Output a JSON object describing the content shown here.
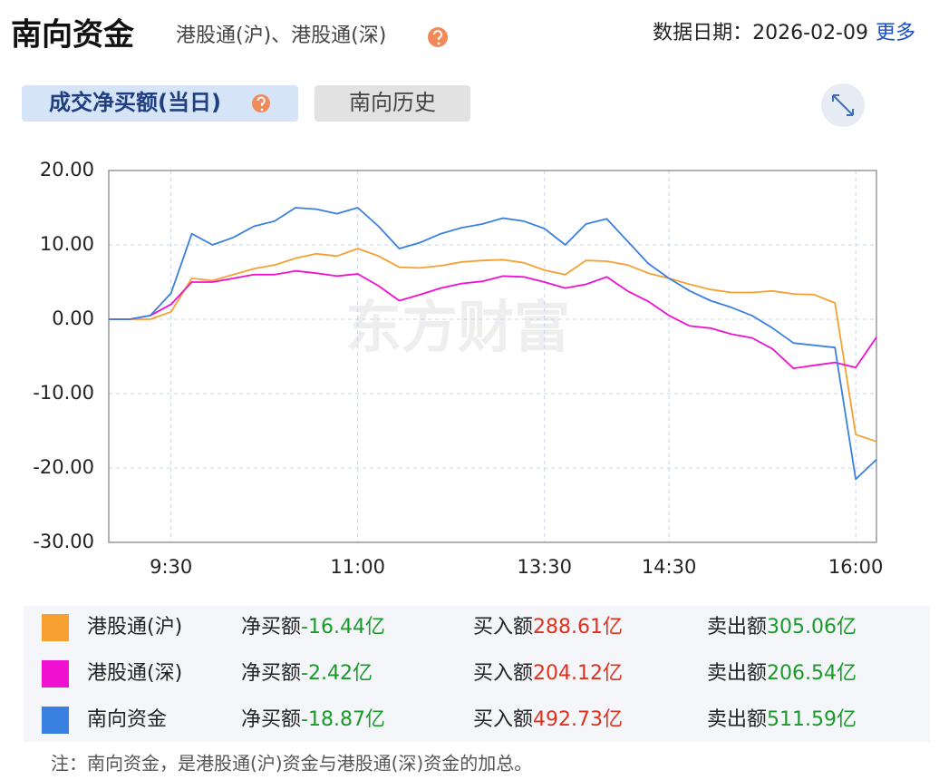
{
  "header": {
    "title": "南向资金",
    "subtitle": "港股通(沪)、港股通(深)",
    "date_label": "数据日期：2026-02-09",
    "more": "更多"
  },
  "tabs": [
    "成交净买额(当日)",
    "南向历史"
  ],
  "chart_data": {
    "type": "line",
    "watermark": "东方财富",
    "categories": [
      null,
      null,
      null,
      "9:30",
      null,
      null,
      null,
      null,
      null,
      null,
      null,
      null,
      "11:00",
      null,
      null,
      null,
      null,
      null,
      null,
      null,
      null,
      "13:30",
      null,
      null,
      null,
      null,
      null,
      "14:30",
      null,
      null,
      null,
      null,
      null,
      null,
      null,
      null,
      "16:00",
      null
    ],
    "series": [
      {
        "name": "港股通(沪)",
        "color": "#f5a030",
        "values": [
          0,
          0,
          0,
          1,
          5.5,
          5.2,
          6,
          6.8,
          7.3,
          8.2,
          8.8,
          8.5,
          9.5,
          8.5,
          7,
          6.9,
          7.2,
          7.7,
          7.9,
          8,
          7.6,
          6.6,
          6,
          7.9,
          7.8,
          7.3,
          6.2,
          5.5,
          4.7,
          4,
          3.6,
          3.6,
          3.8,
          3.4,
          3.3,
          2.2,
          -15.5,
          -16.44
        ]
      },
      {
        "name": "港股通(深)",
        "color": "#f010d0",
        "values": [
          0,
          0,
          0.5,
          2,
          5,
          5,
          5.5,
          6,
          6,
          6.5,
          6.2,
          5.8,
          6.1,
          4.5,
          2.5,
          3.3,
          4.2,
          4.8,
          5.1,
          5.8,
          5.7,
          5,
          4.2,
          4.7,
          5.7,
          3.8,
          2.4,
          0.5,
          -0.9,
          -1.2,
          -2,
          -2.5,
          -4,
          -6.6,
          -6.2,
          -5.8,
          -6.5,
          -2.42
        ]
      },
      {
        "name": "南向资金",
        "color": "#3a80e0",
        "values": [
          0,
          0,
          0.5,
          3.5,
          11.5,
          10,
          11,
          12.5,
          13.2,
          15,
          14.8,
          14.2,
          15,
          12.5,
          9.5,
          10.3,
          11.5,
          12.3,
          12.8,
          13.6,
          13.2,
          12.2,
          10,
          12.8,
          13.5,
          10.5,
          7.5,
          5.5,
          3.8,
          2.5,
          1.6,
          0.5,
          -1.2,
          -3.2,
          -3.5,
          -3.8,
          -21.5,
          -18.87
        ]
      }
    ],
    "ylim": [
      -30,
      20
    ],
    "yticks": [
      {
        "value": -30,
        "label": "-30.00"
      },
      {
        "value": -20,
        "label": "-20.00"
      },
      {
        "value": -10,
        "label": "-10.00"
      },
      {
        "value": 0,
        "label": "0.00"
      },
      {
        "value": 10,
        "label": "10.00"
      },
      {
        "value": 20,
        "label": "20.00"
      }
    ],
    "grid": true
  },
  "table": {
    "labels": [
      "净买额",
      "买入额",
      "卖出额"
    ],
    "rows": [
      [
        "-16.44亿",
        "288.61亿",
        "305.06亿"
      ],
      [
        "-2.42亿",
        "204.12亿",
        "206.54亿"
      ],
      [
        "-18.87亿",
        "492.73亿",
        "511.59亿"
      ]
    ]
  },
  "note": "注：南向资金，是港股通(沪)资金与港股通(深)资金的加总。"
}
